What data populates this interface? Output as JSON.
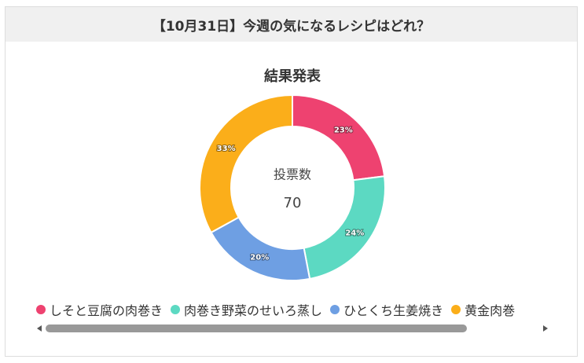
{
  "header": {
    "title": "【10月31日】今週の気になるレシピはどれ？"
  },
  "chart_data": {
    "type": "donut",
    "title": "結果発表",
    "center_label": "投票数",
    "center_value": 70,
    "categories": [
      "しそと豆腐の肉巻き",
      "肉巻き野菜のせいろ蒸し",
      "ひとくち生姜焼き",
      "黄金肉巻"
    ],
    "values": [
      23,
      24,
      20,
      33
    ],
    "value_labels": [
      "23%",
      "24%",
      "20%",
      "33%"
    ],
    "colors": [
      "#ee4270",
      "#5cd9c2",
      "#6e9fe3",
      "#fbae1a"
    ]
  }
}
